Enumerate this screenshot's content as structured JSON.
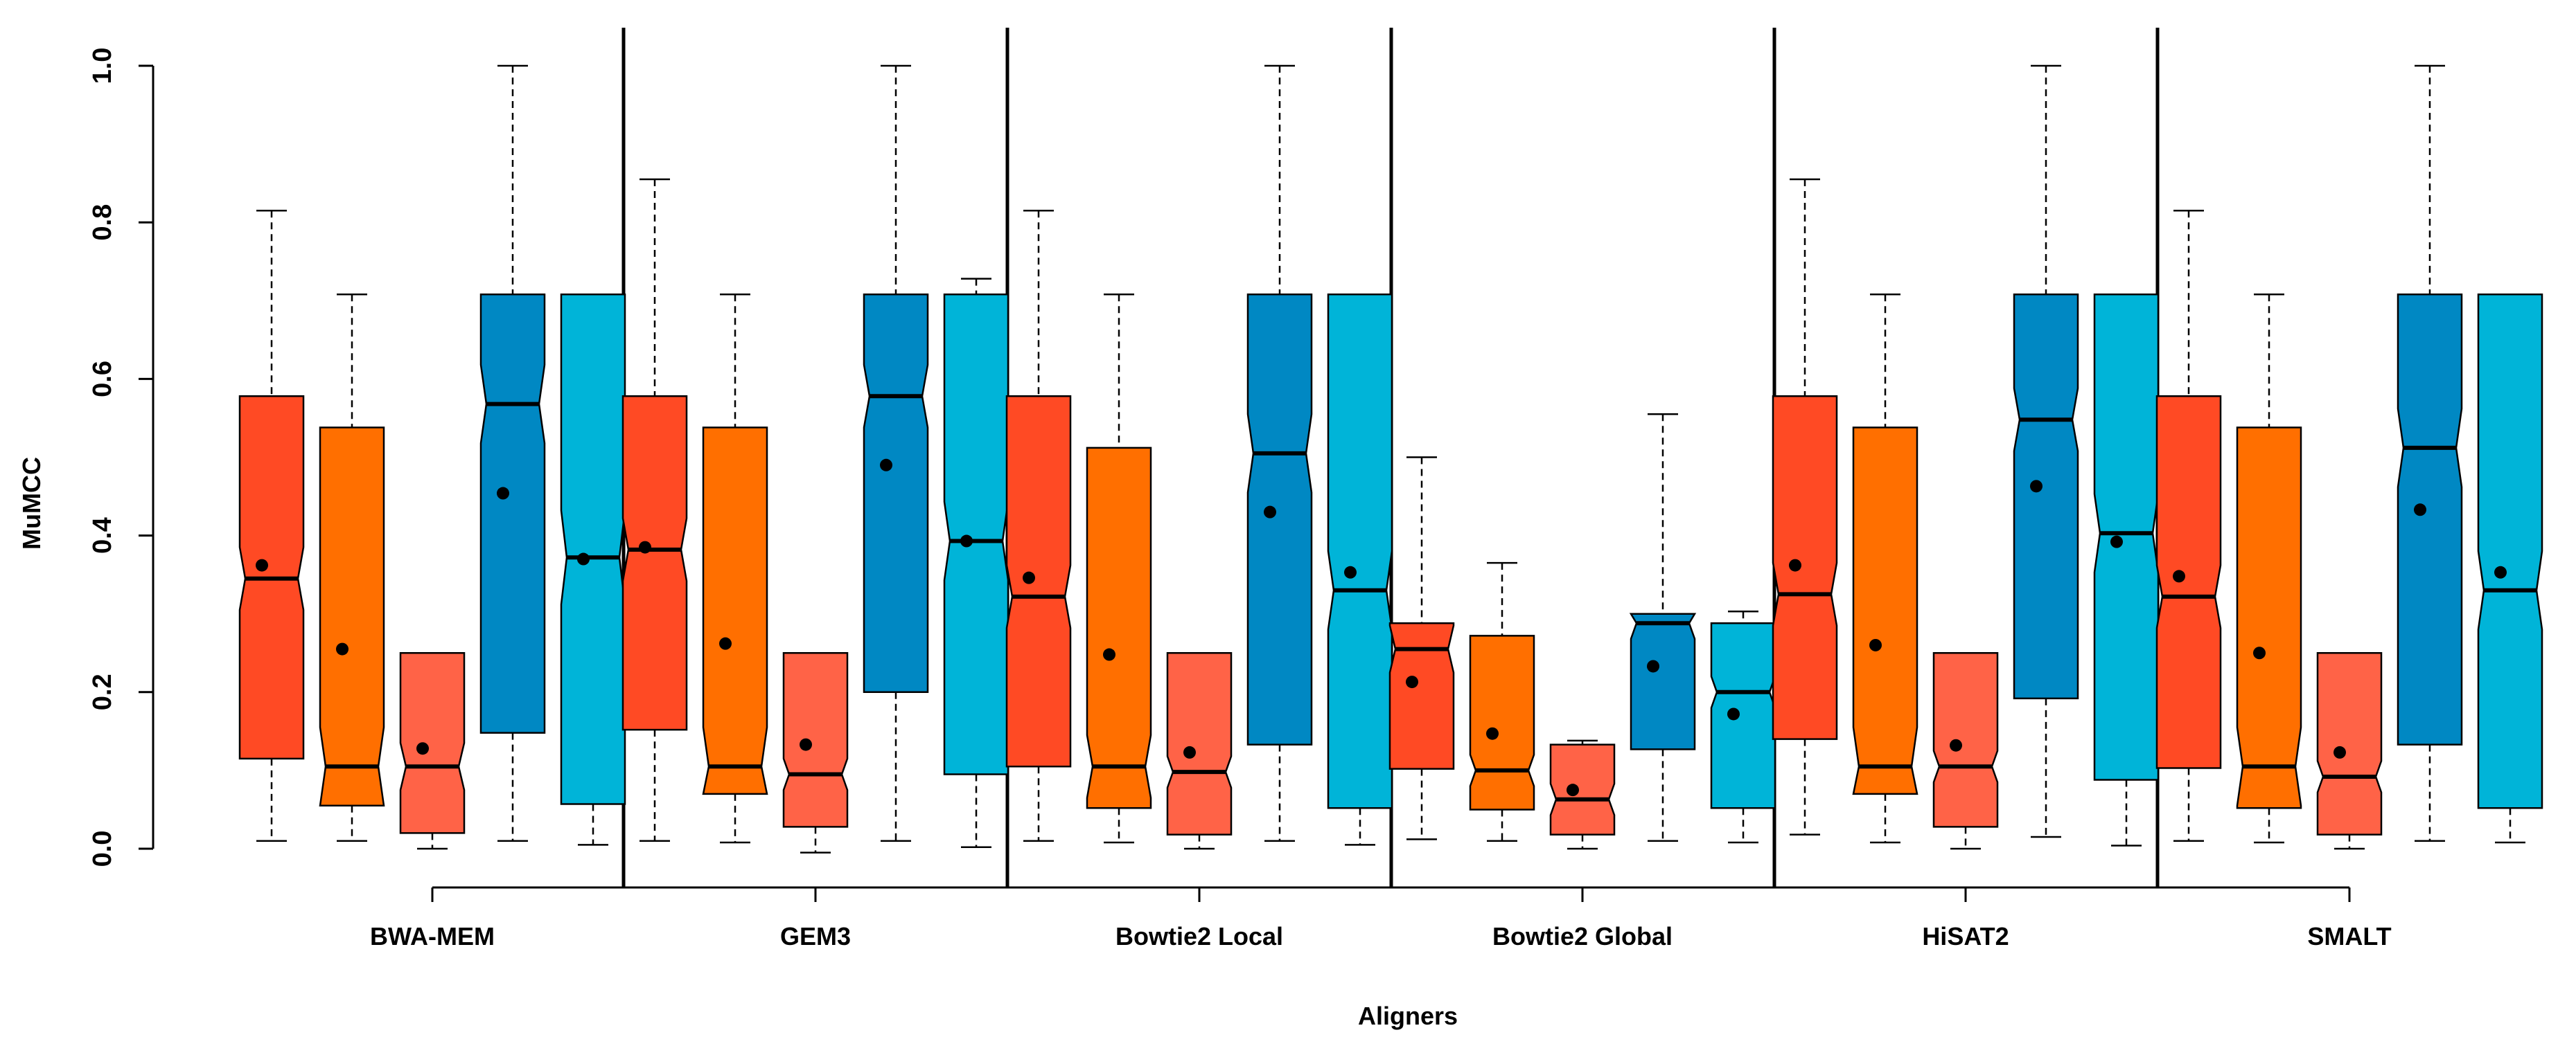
{
  "chart_data": {
    "type": "boxplot",
    "title": "",
    "xlabel": "Aligners",
    "ylabel": "MuMCC",
    "ylim": [
      0,
      1.0
    ],
    "yticks": [
      "0.0",
      "0.2",
      "0.4",
      "0.6",
      "0.8",
      "1.0"
    ],
    "notched": true,
    "series_colors": [
      "#FF4A24",
      "#FF6F00",
      "#FF6347",
      "#0088C3",
      "#00B4D8"
    ],
    "groups": [
      {
        "name": "BWA-MEM",
        "boxes": [
          {
            "min": 0.01,
            "q1": 0.115,
            "median": 0.345,
            "q3": 0.578,
            "max": 0.815,
            "mean": 0.362,
            "notch": 0.04
          },
          {
            "min": 0.01,
            "q1": 0.055,
            "median": 0.105,
            "q3": 0.538,
            "max": 0.708,
            "mean": 0.255,
            "notch": 0.05
          },
          {
            "min": 0.0,
            "q1": 0.02,
            "median": 0.105,
            "q3": 0.25,
            "max": 0.25,
            "mean": 0.128,
            "notch": 0.03
          },
          {
            "min": 0.01,
            "q1": 0.148,
            "median": 0.568,
            "q3": 0.708,
            "max": 1.0,
            "mean": 0.454,
            "notch": 0.05
          },
          {
            "min": 0.005,
            "q1": 0.057,
            "median": 0.372,
            "q3": 0.708,
            "max": 0.708,
            "mean": 0.37,
            "notch": 0.06
          }
        ]
      },
      {
        "name": "GEM3",
        "boxes": [
          {
            "min": 0.01,
            "q1": 0.152,
            "median": 0.382,
            "q3": 0.578,
            "max": 0.855,
            "mean": 0.385,
            "notch": 0.04
          },
          {
            "min": 0.008,
            "q1": 0.07,
            "median": 0.105,
            "q3": 0.538,
            "max": 0.708,
            "mean": 0.262,
            "notch": 0.05
          },
          {
            "min": -0.005,
            "q1": 0.028,
            "median": 0.095,
            "q3": 0.25,
            "max": 0.25,
            "mean": 0.133,
            "notch": 0.02
          },
          {
            "min": 0.01,
            "q1": 0.2,
            "median": 0.578,
            "q3": 0.708,
            "max": 1.0,
            "mean": 0.49,
            "notch": 0.04
          },
          {
            "min": 0.002,
            "q1": 0.095,
            "median": 0.393,
            "q3": 0.708,
            "max": 0.728,
            "mean": 0.393,
            "notch": 0.05
          }
        ]
      },
      {
        "name": "Bowtie2 Local",
        "boxes": [
          {
            "min": 0.01,
            "q1": 0.105,
            "median": 0.322,
            "q3": 0.578,
            "max": 0.815,
            "mean": 0.346,
            "notch": 0.04
          },
          {
            "min": 0.008,
            "q1": 0.052,
            "median": 0.105,
            "q3": 0.512,
            "max": 0.708,
            "mean": 0.248,
            "notch": 0.04
          },
          {
            "min": 0.0,
            "q1": 0.018,
            "median": 0.098,
            "q3": 0.25,
            "max": 0.25,
            "mean": 0.123,
            "notch": 0.02
          },
          {
            "min": 0.01,
            "q1": 0.133,
            "median": 0.505,
            "q3": 0.708,
            "max": 1.0,
            "mean": 0.43,
            "notch": 0.05
          },
          {
            "min": 0.005,
            "q1": 0.052,
            "median": 0.33,
            "q3": 0.708,
            "max": 0.708,
            "mean": 0.353,
            "notch": 0.05
          }
        ]
      },
      {
        "name": "Bowtie2 Global",
        "boxes": [
          {
            "min": 0.012,
            "q1": 0.102,
            "median": 0.255,
            "q3": 0.288,
            "max": 0.5,
            "mean": 0.213,
            "notch": 0.03
          },
          {
            "min": 0.01,
            "q1": 0.05,
            "median": 0.1,
            "q3": 0.272,
            "max": 0.365,
            "mean": 0.147,
            "notch": 0.02
          },
          {
            "min": 0.0,
            "q1": 0.018,
            "median": 0.063,
            "q3": 0.133,
            "max": 0.138,
            "mean": 0.075,
            "notch": 0.02
          },
          {
            "min": 0.01,
            "q1": 0.127,
            "median": 0.288,
            "q3": 0.3,
            "max": 0.555,
            "mean": 0.233,
            "notch": 0.02
          },
          {
            "min": 0.008,
            "q1": 0.052,
            "median": 0.2,
            "q3": 0.288,
            "max": 0.303,
            "mean": 0.172,
            "notch": 0.02
          }
        ]
      },
      {
        "name": "HiSAT2",
        "boxes": [
          {
            "min": 0.018,
            "q1": 0.14,
            "median": 0.325,
            "q3": 0.578,
            "max": 0.855,
            "mean": 0.362,
            "notch": 0.04
          },
          {
            "min": 0.008,
            "q1": 0.07,
            "median": 0.105,
            "q3": 0.538,
            "max": 0.708,
            "mean": 0.26,
            "notch": 0.05
          },
          {
            "min": 0.0,
            "q1": 0.028,
            "median": 0.105,
            "q3": 0.25,
            "max": 0.25,
            "mean": 0.132,
            "notch": 0.02
          },
          {
            "min": 0.015,
            "q1": 0.192,
            "median": 0.548,
            "q3": 0.708,
            "max": 1.0,
            "mean": 0.463,
            "notch": 0.04
          },
          {
            "min": 0.004,
            "q1": 0.088,
            "median": 0.403,
            "q3": 0.708,
            "max": 0.708,
            "mean": 0.392,
            "notch": 0.05
          }
        ]
      },
      {
        "name": "SMALT",
        "boxes": [
          {
            "min": 0.01,
            "q1": 0.103,
            "median": 0.322,
            "q3": 0.578,
            "max": 0.815,
            "mean": 0.348,
            "notch": 0.04
          },
          {
            "min": 0.008,
            "q1": 0.052,
            "median": 0.105,
            "q3": 0.538,
            "max": 0.708,
            "mean": 0.25,
            "notch": 0.05
          },
          {
            "min": 0.0,
            "q1": 0.018,
            "median": 0.092,
            "q3": 0.25,
            "max": 0.25,
            "mean": 0.123,
            "notch": 0.02
          },
          {
            "min": 0.01,
            "q1": 0.133,
            "median": 0.512,
            "q3": 0.708,
            "max": 1.0,
            "mean": 0.433,
            "notch": 0.05
          },
          {
            "min": 0.008,
            "q1": 0.052,
            "median": 0.33,
            "q3": 0.708,
            "max": 0.708,
            "mean": 0.353,
            "notch": 0.05
          }
        ]
      }
    ]
  }
}
